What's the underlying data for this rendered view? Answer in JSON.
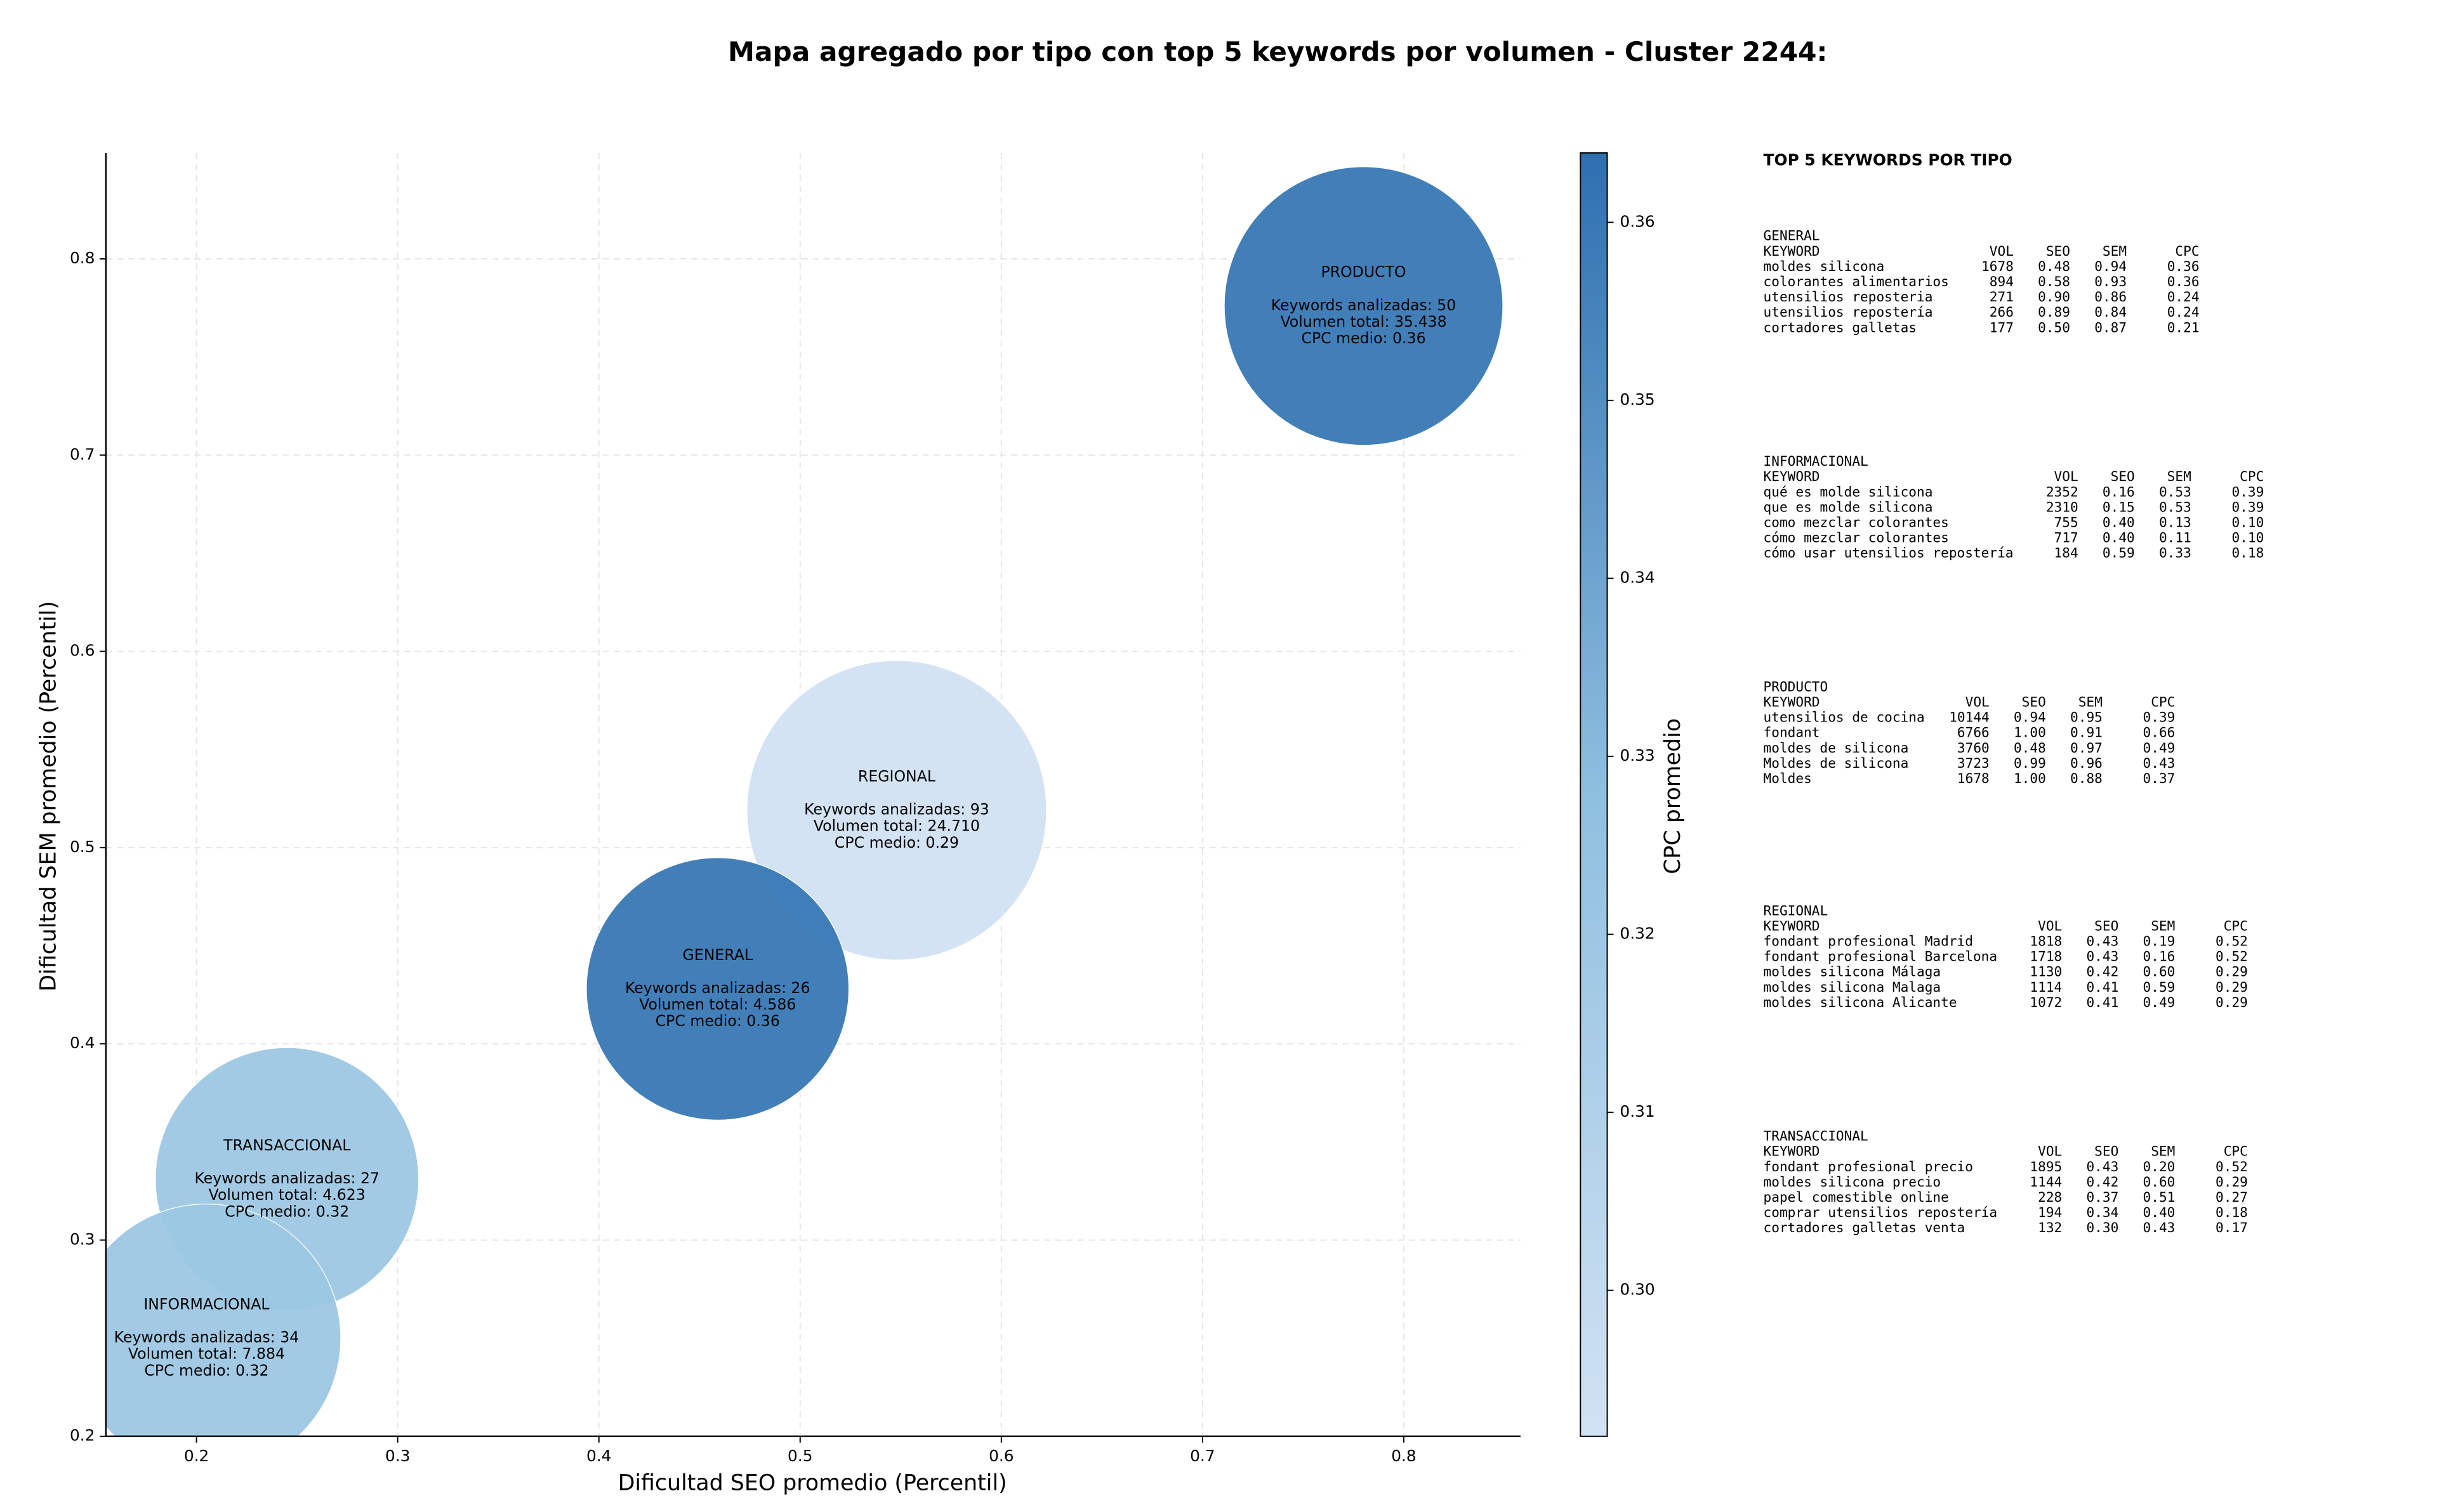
{
  "chart_data": {
    "type": "bubble",
    "title": "Mapa agregado por tipo con top 5 keywords por volumen - Cluster 2244:",
    "xlabel": "Dificultad SEO promedio (Percentil)",
    "ylabel": "Dificultad SEM promedio (Percentil)",
    "categories": [
      "PRODUCTO",
      "REGIONAL",
      "GENERAL",
      "TRANSACCIONAL",
      "INFORMACIONAL"
    ],
    "x": [
      0.78,
      0.548,
      0.459,
      0.245,
      0.205
    ],
    "values": [
      0.776,
      0.519,
      0.428,
      0.331,
      0.25
    ],
    "keywords": [
      50,
      93,
      26,
      27,
      34
    ],
    "keyword_labels": [
      "Keywords analizadas: 50",
      "Keywords analizadas: 93",
      "Keywords analizadas: 26",
      "Keywords analizadas: 27",
      "Keywords analizadas: 34"
    ],
    "volume": [
      35438,
      24710,
      4586,
      4623,
      7884
    ],
    "volume_labels": [
      "Volumen total: 35.438",
      "Volumen total: 24.710",
      "Volumen total: 4.586",
      "Volumen total: 4.623",
      "Volumen total: 7.884"
    ],
    "cpc": [
      0.36,
      0.29,
      0.36,
      0.32,
      0.32
    ],
    "cpc_labels": [
      "CPC medio: 0.36",
      "CPC medio: 0.29",
      "CPC medio: 0.36",
      "CPC medio: 0.32",
      "CPC medio: 0.32"
    ],
    "xlim": [
      0.155,
      0.858
    ],
    "xticks": [
      0.2,
      0.3,
      0.4,
      0.5,
      0.6,
      0.7,
      0.8
    ],
    "ylim": [
      0.2,
      0.854
    ],
    "yticks": [
      0.2,
      0.3,
      0.4,
      0.5,
      0.6,
      0.7,
      0.8
    ],
    "grid": true,
    "colorbar": {
      "label": "CPC promedio",
      "lim": [
        0.2918,
        0.3639
      ],
      "ticks": [
        {
          "value": 0.3,
          "label": "0.30"
        },
        {
          "value": 0.31,
          "label": "0.31"
        },
        {
          "value": 0.32,
          "label": "0.32"
        },
        {
          "value": 0.33,
          "label": "0.33"
        },
        {
          "value": 0.34,
          "label": "0.34"
        },
        {
          "value": 0.35,
          "label": "0.35"
        },
        {
          "value": 0.36,
          "label": "0.36"
        }
      ],
      "colors": [
        "#d1e2f3",
        "#8fbfdf",
        "#2e6fb0"
      ]
    }
  },
  "side_panel": {
    "title": "TOP 5 KEYWORDS POR TIPO",
    "columns": [
      "KEYWORD",
      "VOL",
      "SEO",
      "SEM",
      "CPC"
    ],
    "groups": [
      {
        "name": "GENERAL",
        "rows": [
          [
            "moldes silicona",
            "1678",
            "0.48",
            "0.94",
            "0.36"
          ],
          [
            "colorantes alimentarios",
            "894",
            "0.58",
            "0.93",
            "0.36"
          ],
          [
            "utensilios reposteria",
            "271",
            "0.90",
            "0.86",
            "0.24"
          ],
          [
            "utensilios repostería",
            "266",
            "0.89",
            "0.84",
            "0.24"
          ],
          [
            "cortadores galletas",
            "177",
            "0.50",
            "0.87",
            "0.21"
          ]
        ]
      },
      {
        "name": "INFORMACIONAL",
        "rows": [
          [
            "qué es molde silicona",
            "2352",
            "0.16",
            "0.53",
            "0.39"
          ],
          [
            "que es molde silicona",
            "2310",
            "0.15",
            "0.53",
            "0.39"
          ],
          [
            "como mezclar colorantes",
            "755",
            "0.40",
            "0.13",
            "0.10"
          ],
          [
            "cómo mezclar colorantes",
            "717",
            "0.40",
            "0.11",
            "0.10"
          ],
          [
            "cómo usar utensilios repostería",
            "184",
            "0.59",
            "0.33",
            "0.18"
          ]
        ]
      },
      {
        "name": "PRODUCTO",
        "rows": [
          [
            "utensilios de cocina",
            "10144",
            "0.94",
            "0.95",
            "0.39"
          ],
          [
            "fondant",
            "6766",
            "1.00",
            "0.91",
            "0.66"
          ],
          [
            "moldes de silicona",
            "3760",
            "0.48",
            "0.97",
            "0.49"
          ],
          [
            "Moldes de silicona",
            "3723",
            "0.99",
            "0.96",
            "0.43"
          ],
          [
            "Moldes",
            "1678",
            "1.00",
            "0.88",
            "0.37"
          ]
        ]
      },
      {
        "name": "REGIONAL",
        "rows": [
          [
            "fondant profesional Madrid",
            "1818",
            "0.43",
            "0.19",
            "0.52"
          ],
          [
            "fondant profesional Barcelona",
            "1718",
            "0.43",
            "0.16",
            "0.52"
          ],
          [
            "moldes silicona Málaga",
            "1130",
            "0.42",
            "0.60",
            "0.29"
          ],
          [
            "moldes silicona Malaga",
            "1114",
            "0.41",
            "0.59",
            "0.29"
          ],
          [
            "moldes silicona Alicante",
            "1072",
            "0.41",
            "0.49",
            "0.29"
          ]
        ]
      },
      {
        "name": "TRANSACCIONAL",
        "rows": [
          [
            "fondant profesional precio",
            "1895",
            "0.43",
            "0.20",
            "0.52"
          ],
          [
            "moldes silicona precio",
            "1144",
            "0.42",
            "0.60",
            "0.29"
          ],
          [
            "papel comestible online",
            "228",
            "0.37",
            "0.51",
            "0.27"
          ],
          [
            "comprar utensilios repostería",
            "194",
            "0.34",
            "0.40",
            "0.18"
          ],
          [
            "cortadores galletas venta",
            "132",
            "0.30",
            "0.43",
            "0.17"
          ]
        ]
      }
    ]
  }
}
